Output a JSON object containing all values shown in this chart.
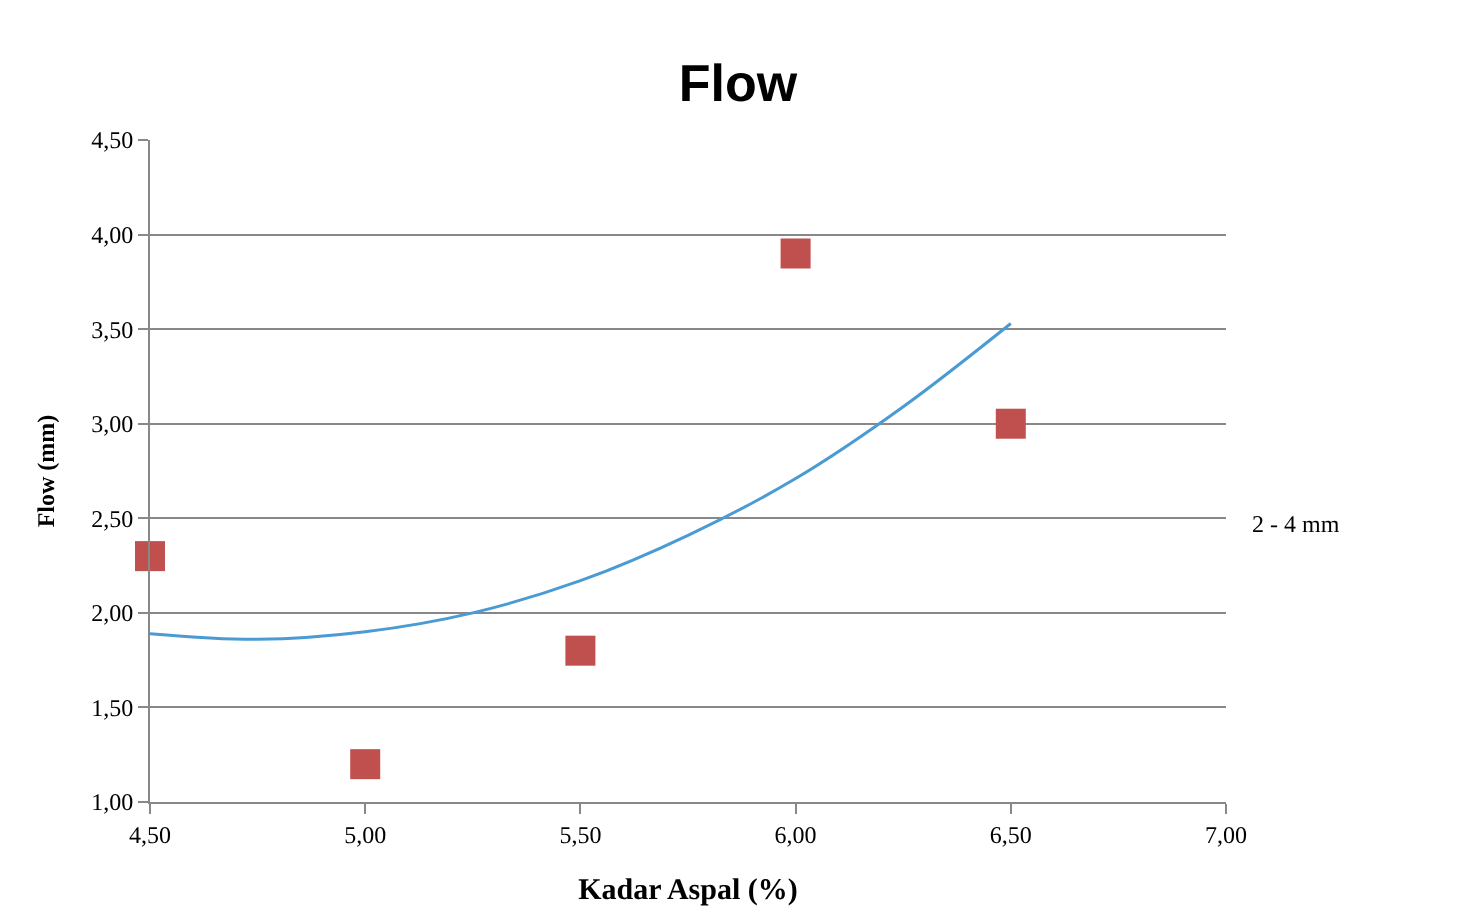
{
  "chart_data": {
    "type": "scatter",
    "title": "Flow",
    "xlabel": "Kadar Aspal (%)",
    "ylabel": "Flow (mm)",
    "series": [
      {
        "color": "#c0504d",
        "marker": "square",
        "x": [
          4.5,
          5.0,
          5.5,
          6.0,
          6.5
        ],
        "values": [
          2.3,
          1.2,
          1.8,
          3.9,
          3.0
        ]
      },
      {
        "type": "line",
        "color": "#4a9bd4",
        "marker": "none",
        "x": [
          4.5,
          4.75,
          5.0,
          5.25,
          5.5,
          5.75,
          6.0,
          6.25,
          6.5
        ],
        "values": [
          1.89,
          1.86,
          1.9,
          2.0,
          2.17,
          2.41,
          2.71,
          3.09,
          3.53
        ]
      }
    ],
    "xlim": [
      4.5,
      7.0
    ],
    "xticks": [
      {
        "value": 4.5,
        "label": "4,50"
      },
      {
        "value": 5.0,
        "label": "5,00"
      },
      {
        "value": 5.5,
        "label": "5,50"
      },
      {
        "value": 6.0,
        "label": "6,00"
      },
      {
        "value": 6.5,
        "label": "6,50"
      },
      {
        "value": 7.0,
        "label": "7,00"
      }
    ],
    "ylim": [
      1.0,
      4.5
    ],
    "yticks": [
      {
        "value": 1.0,
        "label": "1,00"
      },
      {
        "value": 1.5,
        "label": "1,50"
      },
      {
        "value": 2.0,
        "label": "2,00"
      },
      {
        "value": 2.5,
        "label": "2,50"
      },
      {
        "value": 3.0,
        "label": "3,00"
      },
      {
        "value": 3.5,
        "label": "3,50"
      },
      {
        "value": 4.0,
        "label": "4,00"
      },
      {
        "value": 4.5,
        "label": "4,50"
      }
    ],
    "grid": "y",
    "annotations": [
      "2 - 4 mm"
    ]
  }
}
